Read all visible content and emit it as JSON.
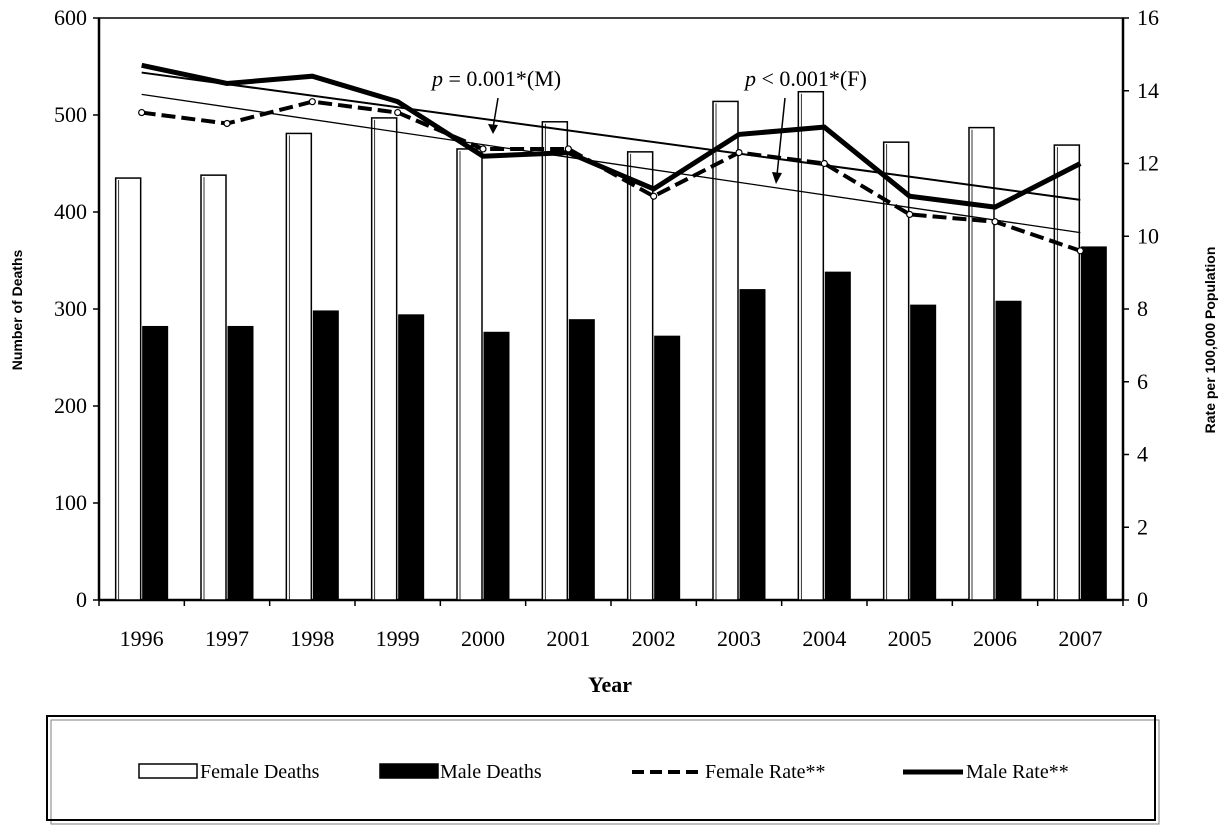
{
  "chart_data": {
    "type": "bar",
    "categories": [
      "1996",
      "1997",
      "1998",
      "1999",
      "2000",
      "2001",
      "2002",
      "2003",
      "2004",
      "2005",
      "2006",
      "2007"
    ],
    "xlabel": "Year",
    "ylabel": "Number of Deaths",
    "ylabel_right": "Rate per 100,000 Population",
    "ylim": [
      0,
      600
    ],
    "ylim_right": [
      0,
      16
    ],
    "yticks": [
      "0",
      "100",
      "200",
      "300",
      "400",
      "500",
      "600"
    ],
    "yticks_right": [
      "0",
      "2",
      "4",
      "6",
      "8",
      "10",
      "12",
      "14",
      "16"
    ],
    "grid": false,
    "series": [
      {
        "name": "Female Deaths",
        "type": "bar",
        "axis": "left",
        "color": "#ffffff",
        "values": [
          435,
          438,
          481,
          497,
          465,
          493,
          462,
          514,
          524,
          472,
          487,
          469
        ]
      },
      {
        "name": "Male Deaths",
        "type": "bar",
        "axis": "left",
        "color": "#000000",
        "values": [
          282,
          282,
          298,
          294,
          276,
          289,
          272,
          320,
          338,
          304,
          308,
          364
        ]
      },
      {
        "name": "Female Rate**",
        "type": "line",
        "axis": "right",
        "style": "dashed",
        "values": [
          13.4,
          13.1,
          13.7,
          13.4,
          12.4,
          12.4,
          11.1,
          12.3,
          12.0,
          10.6,
          10.4,
          9.6
        ]
      },
      {
        "name": "Male Rate**",
        "type": "line",
        "axis": "right",
        "style": "solid",
        "values": [
          14.7,
          14.2,
          14.4,
          13.7,
          12.2,
          12.3,
          11.3,
          12.8,
          13.0,
          11.1,
          10.8,
          12.0
        ]
      }
    ],
    "trendlines": [
      {
        "for": "Female Rate**",
        "start": 13.9,
        "end": 10.1
      },
      {
        "for": "Male Rate**",
        "start": 14.5,
        "end": 11.0
      }
    ],
    "annotations": [
      {
        "text": "p = 0.001*(M)",
        "italic": "p",
        "rest": " = 0.001*(M)"
      },
      {
        "text": "p < 0.001*(F)",
        "italic": "p",
        "rest": " < 0.001*(F)"
      }
    ],
    "legend": {
      "placement": "bottom",
      "entries": [
        "Female Deaths",
        "Male Deaths",
        "Female Rate**",
        "Male Rate**"
      ]
    }
  }
}
